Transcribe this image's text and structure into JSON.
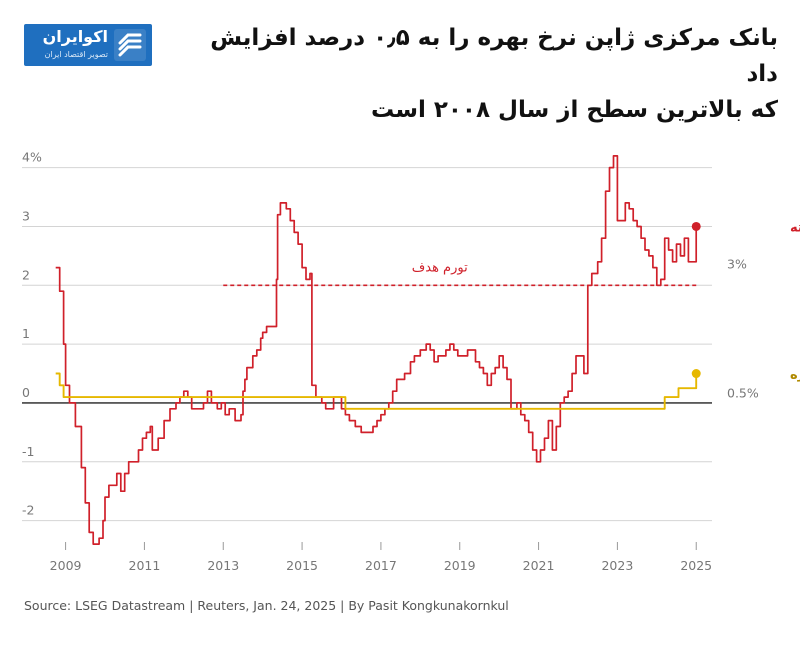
{
  "header": {
    "title_line1": "بانک مرکزی ژاپن نرخ بهره را به ۰٫۵ درصد افزایش داد",
    "title_line2": "که بالاترین سطح از سال ۲۰۰۸ است"
  },
  "logo": {
    "name": "اکوایران",
    "tagline": "تصویر اقتصاد ایران",
    "color": "#1f6fbf"
  },
  "source": "Source: LSEG Datastream | Reuters, Jan. 24, 2025 | By Pasit Kongkunakornkul",
  "chart_data": {
    "type": "line",
    "title": "",
    "xlabel": "",
    "ylabel": "",
    "xlim": [
      2008.3,
      2025.4
    ],
    "ylim": [
      -2.5,
      4.3
    ],
    "yticks": [
      {
        "value": 4,
        "label": "4%"
      },
      {
        "value": 3,
        "label": "3"
      },
      {
        "value": 2,
        "label": "2"
      },
      {
        "value": 1,
        "label": "1"
      },
      {
        "value": 0,
        "label": "0"
      },
      {
        "value": -1,
        "label": "-1"
      },
      {
        "value": -2,
        "label": "-2"
      }
    ],
    "xticks": [
      {
        "value": 2009,
        "label": "2009"
      },
      {
        "value": 2011,
        "label": "2011"
      },
      {
        "value": 2013,
        "label": "2013"
      },
      {
        "value": 2015,
        "label": "2015"
      },
      {
        "value": 2017,
        "label": "2017"
      },
      {
        "value": 2019,
        "label": "2019"
      },
      {
        "value": 2021,
        "label": "2021"
      },
      {
        "value": 2023,
        "label": "2023"
      },
      {
        "value": 2025,
        "label": "2025"
      }
    ],
    "grid": true,
    "target": {
      "value": 2,
      "from": 2013,
      "to": 2025,
      "label": "تورم هدف",
      "color": "#d0202a"
    },
    "series": [
      {
        "name": "تورم هسته",
        "end_label": "3%",
        "color": "#d0202a",
        "points": [
          [
            2008.75,
            2.3
          ],
          [
            2008.85,
            1.9
          ],
          [
            2008.95,
            1.0
          ],
          [
            2009.0,
            0.3
          ],
          [
            2009.1,
            0.0
          ],
          [
            2009.25,
            -0.4
          ],
          [
            2009.4,
            -1.1
          ],
          [
            2009.5,
            -1.7
          ],
          [
            2009.6,
            -2.2
          ],
          [
            2009.7,
            -2.4
          ],
          [
            2009.85,
            -2.3
          ],
          [
            2009.95,
            -2.0
          ],
          [
            2010.0,
            -1.6
          ],
          [
            2010.1,
            -1.4
          ],
          [
            2010.2,
            -1.4
          ],
          [
            2010.3,
            -1.2
          ],
          [
            2010.4,
            -1.5
          ],
          [
            2010.5,
            -1.2
          ],
          [
            2010.6,
            -1.0
          ],
          [
            2010.75,
            -1.0
          ],
          [
            2010.85,
            -0.8
          ],
          [
            2010.95,
            -0.6
          ],
          [
            2011.05,
            -0.5
          ],
          [
            2011.15,
            -0.4
          ],
          [
            2011.2,
            -0.8
          ],
          [
            2011.35,
            -0.6
          ],
          [
            2011.5,
            -0.3
          ],
          [
            2011.65,
            -0.1
          ],
          [
            2011.8,
            0.0
          ],
          [
            2011.9,
            0.1
          ],
          [
            2012.0,
            0.2
          ],
          [
            2012.1,
            0.1
          ],
          [
            2012.2,
            -0.1
          ],
          [
            2012.35,
            -0.1
          ],
          [
            2012.5,
            0.0
          ],
          [
            2012.6,
            0.2
          ],
          [
            2012.7,
            0.0
          ],
          [
            2012.85,
            -0.1
          ],
          [
            2012.95,
            0.0
          ],
          [
            2013.05,
            -0.2
          ],
          [
            2013.15,
            -0.1
          ],
          [
            2013.3,
            -0.3
          ],
          [
            2013.45,
            -0.2
          ],
          [
            2013.5,
            0.2
          ],
          [
            2013.55,
            0.4
          ],
          [
            2013.6,
            0.6
          ],
          [
            2013.75,
            0.8
          ],
          [
            2013.85,
            0.9
          ],
          [
            2013.95,
            1.1
          ],
          [
            2014.0,
            1.2
          ],
          [
            2014.1,
            1.3
          ],
          [
            2014.3,
            1.3
          ],
          [
            2014.35,
            2.1
          ],
          [
            2014.38,
            3.2
          ],
          [
            2014.45,
            3.4
          ],
          [
            2014.6,
            3.3
          ],
          [
            2014.7,
            3.1
          ],
          [
            2014.8,
            2.9
          ],
          [
            2014.9,
            2.7
          ],
          [
            2015.0,
            2.3
          ],
          [
            2015.1,
            2.1
          ],
          [
            2015.2,
            2.2
          ],
          [
            2015.25,
            0.3
          ],
          [
            2015.35,
            0.1
          ],
          [
            2015.5,
            0.0
          ],
          [
            2015.6,
            -0.1
          ],
          [
            2015.8,
            0.1
          ],
          [
            2015.9,
            0.1
          ],
          [
            2016.0,
            -0.1
          ],
          [
            2016.1,
            -0.2
          ],
          [
            2016.2,
            -0.3
          ],
          [
            2016.35,
            -0.4
          ],
          [
            2016.5,
            -0.5
          ],
          [
            2016.65,
            -0.5
          ],
          [
            2016.8,
            -0.4
          ],
          [
            2016.9,
            -0.3
          ],
          [
            2017.0,
            -0.2
          ],
          [
            2017.1,
            -0.1
          ],
          [
            2017.2,
            0.0
          ],
          [
            2017.3,
            0.2
          ],
          [
            2017.4,
            0.4
          ],
          [
            2017.6,
            0.5
          ],
          [
            2017.75,
            0.7
          ],
          [
            2017.85,
            0.8
          ],
          [
            2018.0,
            0.9
          ],
          [
            2018.15,
            1.0
          ],
          [
            2018.25,
            0.9
          ],
          [
            2018.35,
            0.7
          ],
          [
            2018.45,
            0.8
          ],
          [
            2018.55,
            0.8
          ],
          [
            2018.65,
            0.9
          ],
          [
            2018.75,
            1.0
          ],
          [
            2018.85,
            0.9
          ],
          [
            2018.95,
            0.8
          ],
          [
            2019.1,
            0.8
          ],
          [
            2019.2,
            0.9
          ],
          [
            2019.3,
            0.9
          ],
          [
            2019.4,
            0.7
          ],
          [
            2019.5,
            0.6
          ],
          [
            2019.6,
            0.5
          ],
          [
            2019.7,
            0.3
          ],
          [
            2019.8,
            0.5
          ],
          [
            2019.9,
            0.6
          ],
          [
            2020.0,
            0.8
          ],
          [
            2020.1,
            0.6
          ],
          [
            2020.2,
            0.4
          ],
          [
            2020.3,
            -0.1
          ],
          [
            2020.45,
            0.0
          ],
          [
            2020.55,
            -0.2
          ],
          [
            2020.65,
            -0.3
          ],
          [
            2020.75,
            -0.5
          ],
          [
            2020.85,
            -0.8
          ],
          [
            2020.95,
            -1.0
          ],
          [
            2021.05,
            -0.8
          ],
          [
            2021.15,
            -0.6
          ],
          [
            2021.25,
            -0.3
          ],
          [
            2021.35,
            -0.8
          ],
          [
            2021.45,
            -0.4
          ],
          [
            2021.55,
            0.0
          ],
          [
            2021.65,
            0.1
          ],
          [
            2021.75,
            0.2
          ],
          [
            2021.85,
            0.5
          ],
          [
            2021.95,
            0.8
          ],
          [
            2022.05,
            0.8
          ],
          [
            2022.15,
            0.5
          ],
          [
            2022.25,
            2.0
          ],
          [
            2022.35,
            2.2
          ],
          [
            2022.5,
            2.4
          ],
          [
            2022.6,
            2.8
          ],
          [
            2022.7,
            3.6
          ],
          [
            2022.8,
            4.0
          ],
          [
            2022.9,
            4.2
          ],
          [
            2023.0,
            3.1
          ],
          [
            2023.2,
            3.4
          ],
          [
            2023.3,
            3.3
          ],
          [
            2023.4,
            3.1
          ],
          [
            2023.5,
            3.0
          ],
          [
            2023.6,
            2.8
          ],
          [
            2023.7,
            2.6
          ],
          [
            2023.8,
            2.5
          ],
          [
            2023.9,
            2.3
          ],
          [
            2024.0,
            2.0
          ],
          [
            2024.1,
            2.1
          ],
          [
            2024.2,
            2.8
          ],
          [
            2024.3,
            2.6
          ],
          [
            2024.4,
            2.4
          ],
          [
            2024.5,
            2.7
          ],
          [
            2024.6,
            2.5
          ],
          [
            2024.7,
            2.8
          ],
          [
            2024.8,
            2.4
          ],
          [
            2024.9,
            2.4
          ],
          [
            2025.0,
            3.0
          ]
        ]
      },
      {
        "name": "نرخ بهره",
        "end_label": "0.5%",
        "color": "#e6b800",
        "points": [
          [
            2008.75,
            0.5
          ],
          [
            2008.85,
            0.3
          ],
          [
            2008.95,
            0.1
          ],
          [
            2013.0,
            0.1
          ],
          [
            2016.1,
            -0.1
          ],
          [
            2024.2,
            -0.1
          ],
          [
            2024.2,
            0.1
          ],
          [
            2024.55,
            0.1
          ],
          [
            2024.55,
            0.25
          ],
          [
            2025.0,
            0.25
          ],
          [
            2025.0,
            0.5
          ]
        ]
      }
    ]
  }
}
